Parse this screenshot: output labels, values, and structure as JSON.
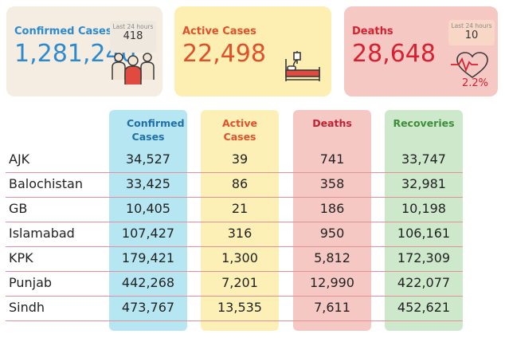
{
  "cards": {
    "confirmed": {
      "title": "Confirmed Cases",
      "value": "1,281,240",
      "badge_label": "Last 24 hours",
      "badge_value": "418",
      "icon": "people-group-icon",
      "color": "#2b8ad0"
    },
    "active": {
      "title": "Active Cases",
      "value": "22,498",
      "icon": "hospital-bed-icon",
      "color": "#e2502a"
    },
    "deaths": {
      "title": "Deaths",
      "value": "28,648",
      "badge_label": "Last 24 hours",
      "badge_value": "10",
      "percent": "2.2%",
      "icon": "heartbeat-icon",
      "color": "#d8202f"
    }
  },
  "table": {
    "headers": {
      "confirmed": "Confirmed Cases",
      "active": "Active Cases",
      "deaths": "Deaths",
      "recoveries": "Recoveries"
    },
    "rows": [
      {
        "region": "AJK",
        "confirmed": "34,527",
        "active": "39",
        "deaths": "741",
        "recoveries": "33,747"
      },
      {
        "region": "Balochistan",
        "confirmed": "33,425",
        "active": "86",
        "deaths": "358",
        "recoveries": "32,981"
      },
      {
        "region": "GB",
        "confirmed": "10,405",
        "active": "21",
        "deaths": "186",
        "recoveries": "10,198"
      },
      {
        "region": "Islamabad",
        "confirmed": "107,427",
        "active": "316",
        "deaths": "950",
        "recoveries": "106,161"
      },
      {
        "region": "KPK",
        "confirmed": "179,421",
        "active": "1,300",
        "deaths": "5,812",
        "recoveries": "172,309"
      },
      {
        "region": "Punjab",
        "confirmed": "442,268",
        "active": "7,201",
        "deaths": "12,990",
        "recoveries": "422,077"
      },
      {
        "region": "Sindh",
        "confirmed": "473,767",
        "active": "13,535",
        "deaths": "7,611",
        "recoveries": "452,621"
      }
    ]
  }
}
